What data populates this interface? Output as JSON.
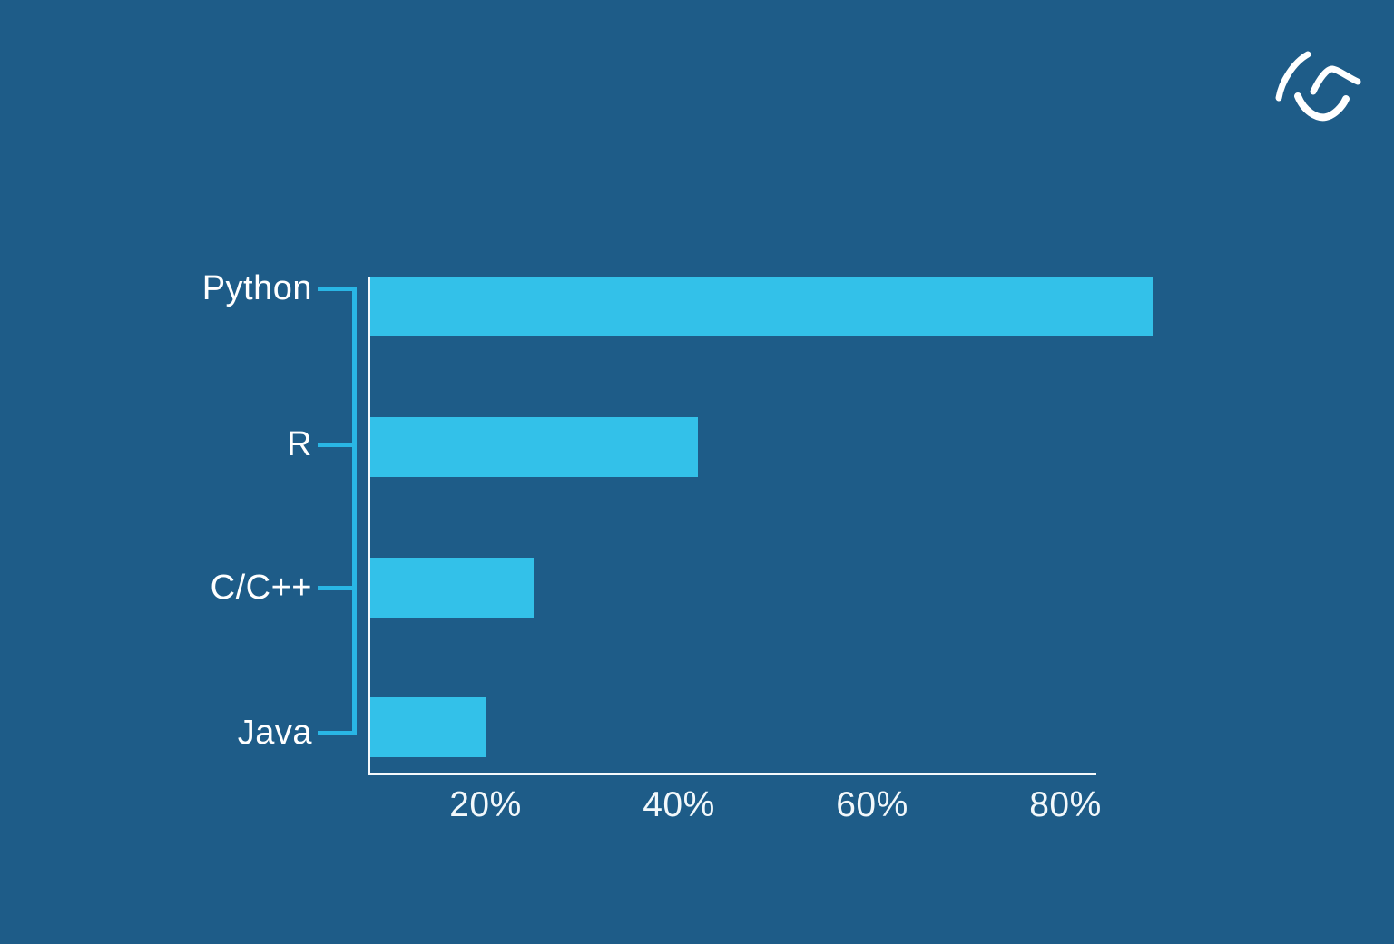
{
  "page": {
    "background_color": "#1E5C88"
  },
  "logo": {
    "name": "brand-swoosh-logo",
    "color": "#FFFFFF"
  },
  "chart_data": {
    "type": "bar",
    "orientation": "horizontal",
    "categories": [
      "Python",
      "R",
      "C/C++",
      "Java"
    ],
    "values": [
      89,
      42,
      25,
      20
    ],
    "value_unit": "%",
    "x_tick_labels": [
      "20%",
      "40%",
      "60%",
      "80%"
    ],
    "x_tick_values": [
      20,
      40,
      60,
      80
    ],
    "xlim": [
      0,
      100
    ],
    "grid": false,
    "legend": false,
    "bar_color": "#33C1E9",
    "connector_color": "#29B6E5",
    "axis_color": "#F5F9FC",
    "text_color": "#FFFFFF"
  }
}
